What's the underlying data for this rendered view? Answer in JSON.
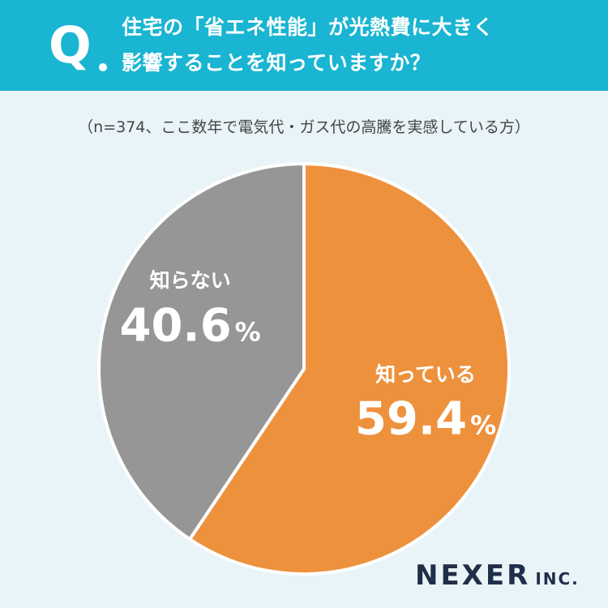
{
  "question": {
    "mark": "Q",
    "line1": "住宅の「省エネ性能」が光熱費に大きく",
    "line2": "影響することを知っていますか？"
  },
  "note": "（n=374、ここ数年で電気代・ガス代の高騰を実感している方）",
  "brand": {
    "name": "NEXER",
    "suffix": "INC."
  },
  "chart_data": {
    "type": "pie",
    "slices": [
      {
        "label": "知っている",
        "value": 59.4,
        "display": "59.4",
        "color": "#ee913d"
      },
      {
        "label": "知らない",
        "value": 40.6,
        "display": "40.6",
        "color": "#969696"
      }
    ],
    "unit": "%",
    "colors": {
      "background": "#e9f4f8",
      "header": "#19b5d2"
    }
  }
}
